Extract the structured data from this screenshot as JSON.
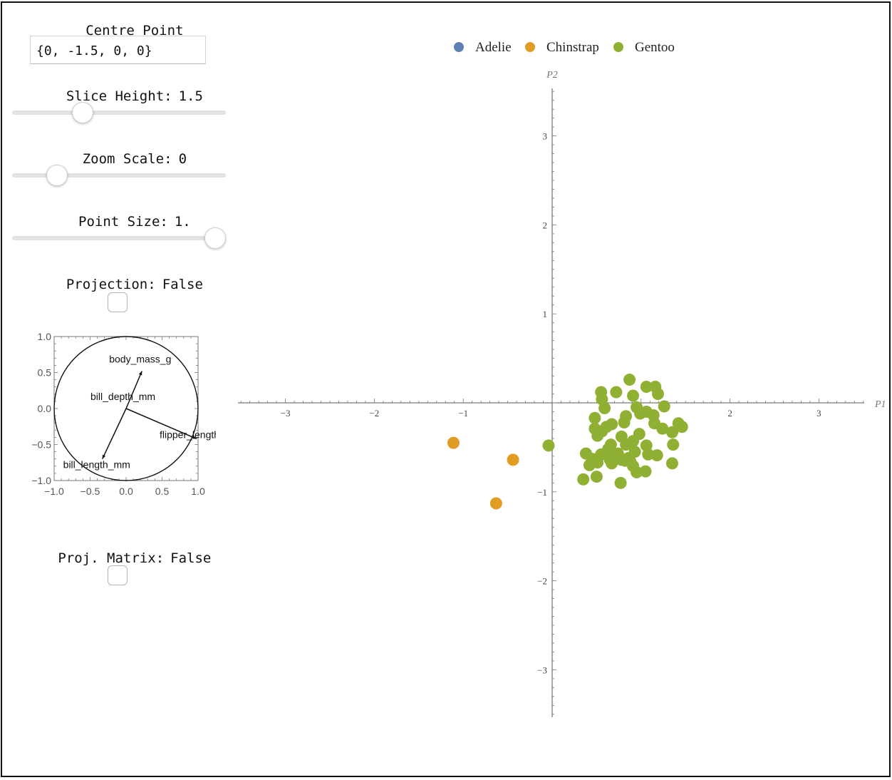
{
  "controls": {
    "centre_point": {
      "label": "Centre Point",
      "value": "{0, -1.5, 0, 0}"
    },
    "slice_height": {
      "label": "Slice Height:",
      "value": "1.5",
      "level": 0.33
    },
    "zoom_scale": {
      "label": "Zoom Scale:",
      "value": "0",
      "level": 0.21
    },
    "point_size": {
      "label": "Point Size:",
      "value": "1.",
      "level": 0.95
    },
    "projection": {
      "label": "Projection:",
      "value": "False",
      "checked": false
    },
    "proj_matrix": {
      "label": "Proj. Matrix:",
      "value": "False",
      "checked": false
    }
  },
  "biplot": {
    "x_ticks": [
      "−1.0",
      "−0.5",
      "0.0",
      "0.5",
      "1.0"
    ],
    "y_ticks": [
      "1.0",
      "0.5",
      "0.0",
      "−0.5",
      "−1.0"
    ],
    "vectors": [
      {
        "label": "body_mass_g",
        "x": 0.22,
        "y": 0.52
      },
      {
        "label": "bill_depth_mm",
        "x": 0.0,
        "y": 0.0
      },
      {
        "label": "flipper_length_mm",
        "x": 0.98,
        "y": -0.42
      },
      {
        "label": "bill_length_mm",
        "x": -0.33,
        "y": -0.7
      }
    ]
  },
  "chart_data": {
    "type": "scatter",
    "xlabel": "P1",
    "ylabel": "P2",
    "xlim": [
      -3.5,
      3.5
    ],
    "ylim": [
      -3.5,
      3.5
    ],
    "x_ticks": [
      -3,
      -2,
      -1,
      1,
      2,
      3
    ],
    "y_ticks": [
      -3,
      -2,
      -1,
      1,
      2,
      3
    ],
    "legend_position": "top-center",
    "series": [
      {
        "name": "Adelie",
        "color": "#5e81b5",
        "points": []
      },
      {
        "name": "Chinstrap",
        "color": "#e19c24",
        "points": [
          [
            -1.11,
            -0.45
          ],
          [
            -0.44,
            -0.64
          ],
          [
            -0.63,
            -1.13
          ]
        ]
      },
      {
        "name": "Gentoo",
        "color": "#8fb032",
        "points": [
          [
            -0.04,
            -0.48
          ],
          [
            0.55,
            0.12
          ],
          [
            0.72,
            0.12
          ],
          [
            0.87,
            0.26
          ],
          [
            0.91,
            0.08
          ],
          [
            1.06,
            0.18
          ],
          [
            1.16,
            0.18
          ],
          [
            1.19,
            0.1
          ],
          [
            0.59,
            -0.06
          ],
          [
            0.56,
            0.04
          ],
          [
            0.67,
            -0.24
          ],
          [
            0.81,
            -0.22
          ],
          [
            0.83,
            -0.15
          ],
          [
            0.95,
            -0.05
          ],
          [
            0.99,
            -0.12
          ],
          [
            1.06,
            -0.1
          ],
          [
            1.14,
            -0.14
          ],
          [
            1.26,
            -0.04
          ],
          [
            1.15,
            -0.23
          ],
          [
            1.24,
            -0.29
          ],
          [
            1.35,
            -0.33
          ],
          [
            1.42,
            -0.23
          ],
          [
            1.46,
            -0.27
          ],
          [
            0.48,
            -0.17
          ],
          [
            0.48,
            -0.29
          ],
          [
            0.51,
            -0.37
          ],
          [
            0.56,
            -0.32
          ],
          [
            0.61,
            -0.27
          ],
          [
            0.66,
            -0.47
          ],
          [
            0.78,
            -0.38
          ],
          [
            0.83,
            -0.47
          ],
          [
            0.91,
            -0.43
          ],
          [
            0.98,
            -0.35
          ],
          [
            1.06,
            -0.48
          ],
          [
            1.36,
            -0.47
          ],
          [
            0.38,
            -0.57
          ],
          [
            0.45,
            -0.63
          ],
          [
            0.55,
            -0.58
          ],
          [
            0.63,
            -0.52
          ],
          [
            0.74,
            -0.57
          ],
          [
            0.86,
            -0.62
          ],
          [
            0.93,
            -0.55
          ],
          [
            1.08,
            -0.58
          ],
          [
            1.18,
            -0.59
          ],
          [
            0.65,
            -0.64
          ],
          [
            0.66,
            -0.57
          ],
          [
            0.75,
            -0.61
          ],
          [
            0.82,
            -0.65
          ],
          [
            0.91,
            -0.71
          ],
          [
            0.95,
            -0.78
          ],
          [
            0.42,
            -0.7
          ],
          [
            0.51,
            -0.67
          ],
          [
            0.67,
            -0.68
          ],
          [
            0.78,
            -0.64
          ],
          [
            0.88,
            -0.66
          ],
          [
            1.05,
            -0.77
          ],
          [
            1.35,
            -0.68
          ],
          [
            0.35,
            -0.86
          ],
          [
            0.5,
            -0.83
          ],
          [
            0.77,
            -0.9
          ]
        ]
      }
    ]
  }
}
